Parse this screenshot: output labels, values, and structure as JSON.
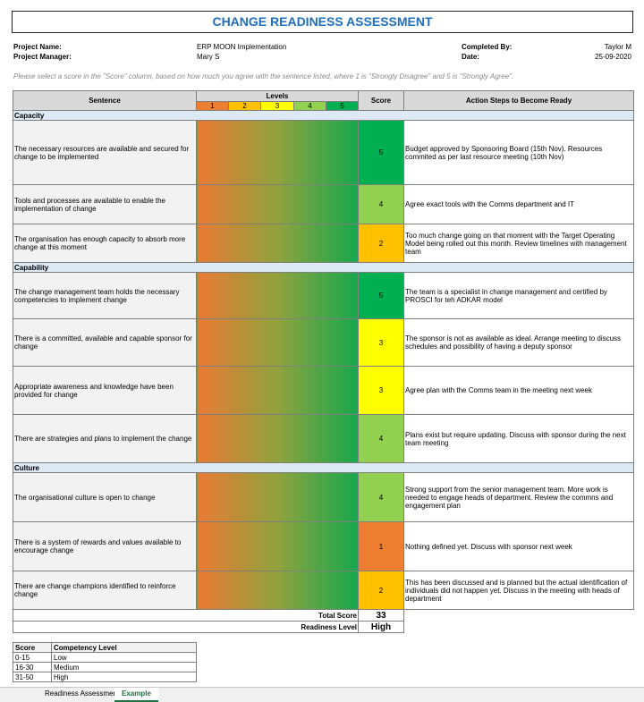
{
  "header": {
    "title": "CHANGE READINESS ASSESSMENT",
    "project_name_label": "Project Name:",
    "project_name": "ERP MOON Implementation",
    "project_manager_label": "Project Manager:",
    "project_manager": "Mary S",
    "completed_by_label": "Completed By:",
    "completed_by": "Taylor M",
    "date_label": "Date:",
    "date": "25-09-2020"
  },
  "instruction": "Please select a score in the \"Score\" column, based on how much you agree with the sentence listed, where 1 is \"Strongly Disagree\" and 5 is \"Strongly Agree\".",
  "table": {
    "columns": [
      "Sentence",
      "Levels",
      "Score",
      "Action Steps to Become Ready"
    ],
    "levels": [
      1,
      2,
      3,
      4,
      5
    ],
    "level_colors": [
      "#ed7d31",
      "#ffc000",
      "#ffff00",
      "#92d050",
      "#00b050"
    ],
    "sections": [
      {
        "name": "Capacity",
        "rows": [
          {
            "sentence": "The necessary resources are available and secured for change to be implemented",
            "score": 5,
            "action": "Budget approved by Sponsoring Board (15th Nov). Resources commited as per last resource meeting (10th Nov)"
          },
          {
            "sentence": "Tools and processes are available to enable the implementation of change",
            "score": 4,
            "action": "Agree exact tools with the Comms department and IT"
          },
          {
            "sentence": "The organisation has enough capacity to absorb more change at this moment",
            "score": 2,
            "action": "Too much change going on that moment with the Target Operating Model being rolled out this month. Review timelines with management team"
          }
        ]
      },
      {
        "name": "Capability",
        "rows": [
          {
            "sentence": "The change management team holds the necessary competencies to implement change",
            "score": 5,
            "action": "The team is a specialist in change management and certified by PROSCI for teh ADKAR model"
          },
          {
            "sentence": "There is a committed, available and capable sponsor for change",
            "score": 3,
            "action": "The sponsor is not as available as ideal. Arrange meeting to discuss schedules and possibility of having a deputy sponsor"
          },
          {
            "sentence": "Appropriate awareness and knowledge have been provided for change",
            "score": 3,
            "action": "Agree plan with the Comms team in the meeting next week"
          },
          {
            "sentence": "There are strategies and plans to implement the change",
            "score": 4,
            "action": "Plans exist but require updating. Discuss with sponsor during the next team meeting"
          }
        ]
      },
      {
        "name": "Culture",
        "rows": [
          {
            "sentence": "The organisational culture is open to change",
            "score": 4,
            "action": "Strong support from the senior management team. More work is needed to engage heads of department. Review the commns and engagement plan"
          },
          {
            "sentence": "There is a system of rewards and values available to encourage change",
            "score": 1,
            "action": "Nothing defined yet. Discuss with sponsor next week"
          },
          {
            "sentence": "There are change champions identified to reinforce change",
            "score": 2,
            "action": "This has been discussed and is planned but the actual identification of individuals did not happen yet. Discuss in the meeting with heads of department"
          }
        ]
      }
    ],
    "total_label": "Total Score",
    "total": 33,
    "readiness_label": "Readiness Level",
    "readiness": "High"
  },
  "legend": {
    "columns": [
      "Score",
      "Competency Level"
    ],
    "rows": [
      [
        "0-15",
        "Low"
      ],
      [
        "16-30",
        "Medium"
      ],
      [
        "31-50",
        "High"
      ]
    ]
  },
  "tabs": [
    "Readiness Assessment",
    "Example"
  ],
  "active_tab": 1
}
